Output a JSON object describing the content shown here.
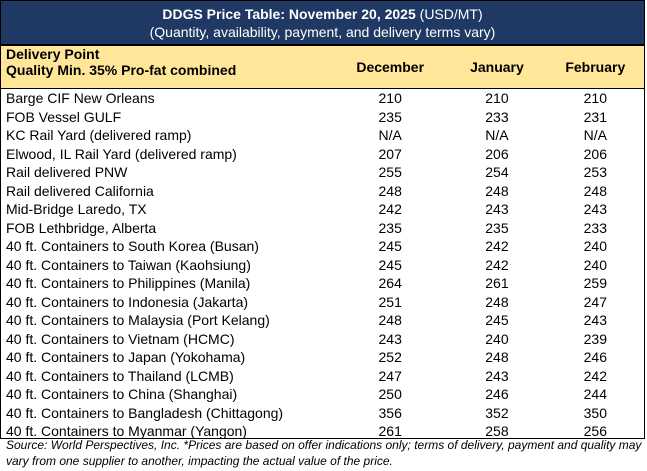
{
  "title": {
    "bold": "DDGS Price Table: November 20, 2025",
    "unit": " (USD/MT)",
    "subtitle": "(Quantity, availability, payment, and delivery terms vary)"
  },
  "header": {
    "col0_line1": "Delivery Point",
    "col0_line2": "Quality Min. 35% Pro-fat combined",
    "months": [
      "December",
      "January",
      "February"
    ]
  },
  "rows": [
    [
      "Barge CIF New Orleans",
      "210",
      "210",
      "210"
    ],
    [
      "FOB Vessel GULF",
      "235",
      "233",
      "231"
    ],
    [
      "KC Rail Yard (delivered ramp)",
      "N/A",
      "N/A",
      "N/A"
    ],
    [
      "Elwood, IL Rail Yard (delivered ramp)",
      "207",
      "206",
      "206"
    ],
    [
      "Rail delivered PNW",
      "255",
      "254",
      "253"
    ],
    [
      "Rail delivered California",
      "248",
      "248",
      "248"
    ],
    [
      "Mid-Bridge Laredo, TX",
      "242",
      "243",
      "243"
    ],
    [
      "FOB Lethbridge, Alberta",
      "235",
      "235",
      "233"
    ],
    [
      "40 ft. Containers to South Korea (Busan)",
      "245",
      "242",
      "240"
    ],
    [
      "40 ft. Containers to Taiwan (Kaohsiung)",
      "245",
      "242",
      "240"
    ],
    [
      "40 ft. Containers to Philippines (Manila)",
      "264",
      "261",
      "259"
    ],
    [
      "40 ft. Containers to Indonesia (Jakarta)",
      "251",
      "248",
      "247"
    ],
    [
      "40 ft. Containers to Malaysia (Port Kelang)",
      "248",
      "245",
      "243"
    ],
    [
      "40 ft. Containers to Vietnam (HCMC)",
      "243",
      "240",
      "239"
    ],
    [
      "40 ft. Containers to Japan (Yokohama)",
      "252",
      "248",
      "246"
    ],
    [
      "40 ft. Containers to Thailand (LCMB)",
      "247",
      "243",
      "242"
    ],
    [
      "40 ft. Containers to China (Shanghai)",
      "250",
      "246",
      "244"
    ],
    [
      "40 ft. Containers to Bangladesh (Chittagong)",
      "356",
      "352",
      "350"
    ],
    [
      "40 ft. Containers to Myanmar (Yangon)",
      "261",
      "258",
      "256"
    ]
  ],
  "source_note": "Source: World Perspectives, Inc. *Prices are based on offer indications only; terms of delivery, payment and quality may vary from one supplier to another, impacting the actual value of the price.",
  "colors": {
    "title_bg": "#1f3864",
    "header_bg": "#ffe699"
  }
}
